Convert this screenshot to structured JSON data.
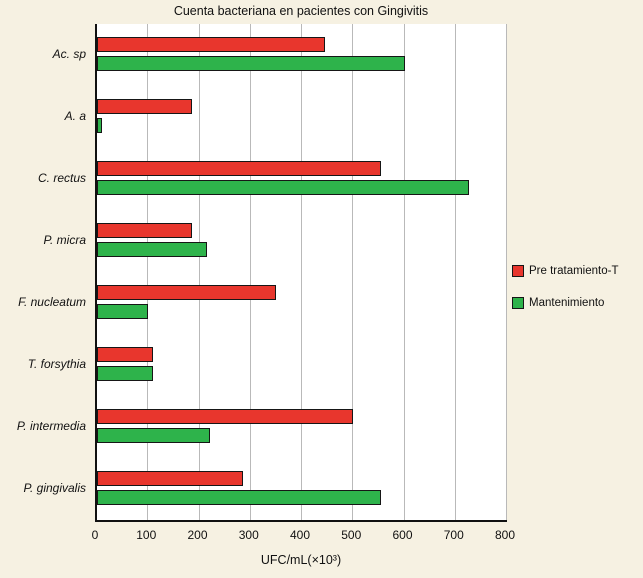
{
  "chart_data": {
    "type": "bar",
    "orientation": "horizontal",
    "title": "Cuenta bacteriana en pacientes con Gingivitis",
    "xlabel": "UFC/mL(×10³)",
    "categories": [
      "Ac. sp",
      "A. a",
      "C. rectus",
      "P. micra",
      "F. nucleatum",
      "T. forsythia",
      "P. intermedia",
      "P. gingivalis"
    ],
    "series": [
      {
        "name": "Pre tratamiento-T",
        "color": "#e8362d",
        "values": [
          445,
          185,
          555,
          185,
          350,
          110,
          500,
          285
        ]
      },
      {
        "name": "Mantenimiento",
        "color": "#2eb34b",
        "values": [
          600,
          10,
          725,
          215,
          100,
          110,
          220,
          555
        ]
      }
    ],
    "xlim": [
      0,
      800
    ],
    "xticks": [
      0,
      100,
      200,
      300,
      400,
      500,
      600,
      700,
      800
    ],
    "grid": true,
    "legend_position": "right",
    "colors": {
      "plot_background": "#ffffff",
      "figure_background": "#f6f1e2",
      "gridline": "#b9b9b9",
      "axis": "#111111"
    }
  }
}
